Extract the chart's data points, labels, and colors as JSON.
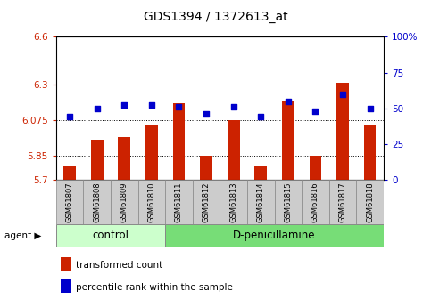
{
  "title": "GDS1394 / 1372613_at",
  "samples": [
    "GSM61807",
    "GSM61808",
    "GSM61809",
    "GSM61810",
    "GSM61811",
    "GSM61812",
    "GSM61813",
    "GSM61814",
    "GSM61815",
    "GSM61816",
    "GSM61817",
    "GSM61818"
  ],
  "transformed_count": [
    5.79,
    5.95,
    5.97,
    6.04,
    6.18,
    5.85,
    6.075,
    5.79,
    6.19,
    5.85,
    6.31,
    6.04
  ],
  "percentile_rank": [
    44,
    50,
    52,
    52,
    51,
    46,
    51,
    44,
    55,
    48,
    60,
    50
  ],
  "control_samples": 4,
  "ylim_left": [
    5.7,
    6.6
  ],
  "ylim_right": [
    0,
    100
  ],
  "yticks_left": [
    5.7,
    5.85,
    6.075,
    6.3,
    6.6
  ],
  "yticks_right": [
    0,
    25,
    50,
    75,
    100
  ],
  "bar_color": "#cc2200",
  "dot_color": "#0000cc",
  "control_bg": "#ccffcc",
  "dpenicillamine_bg": "#77dd77",
  "sample_bg": "#cccccc",
  "bar_width": 0.45,
  "grid_yticks": [
    5.85,
    6.075,
    6.3
  ],
  "control_label": "control",
  "treatment_label": "D-penicillamine",
  "agent_label": "agent",
  "legend_red": "transformed count",
  "legend_blue": "percentile rank within the sample"
}
